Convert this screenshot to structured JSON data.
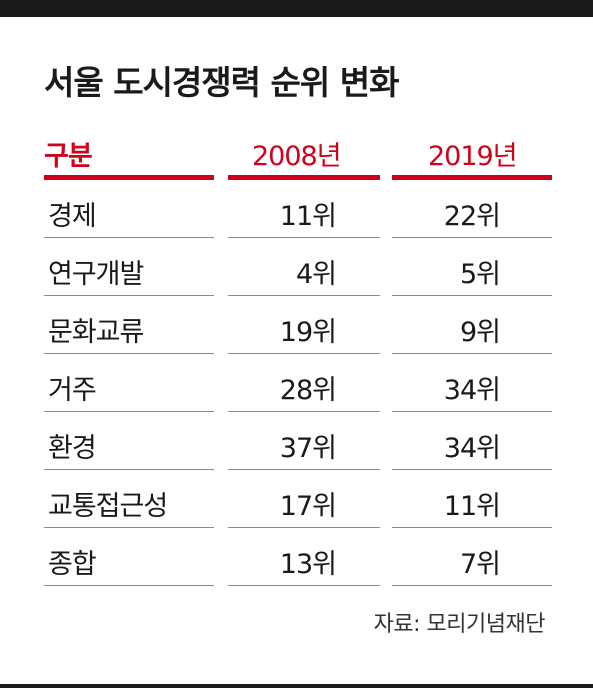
{
  "title": "서울 도시경쟁력 순위 변화",
  "headers": {
    "category": "구분",
    "year1": "2008년",
    "year2": "2019년"
  },
  "rows": [
    {
      "category": "경제",
      "year1": "11위",
      "year2": "22위"
    },
    {
      "category": "연구개발",
      "year1": "4위",
      "year2": "5위"
    },
    {
      "category": "문화교류",
      "year1": "19위",
      "year2": "9위"
    },
    {
      "category": "거주",
      "year1": "28위",
      "year2": "34위"
    },
    {
      "category": "환경",
      "year1": "37위",
      "year2": "34위"
    },
    {
      "category": "교통접근성",
      "year1": "17위",
      "year2": "11위"
    },
    {
      "category": "종합",
      "year1": "13위",
      "year2": "7위"
    }
  ],
  "source": "자료: 모리기념재단",
  "colors": {
    "accent": "#d0021b",
    "bar": "#1a1a1a"
  }
}
